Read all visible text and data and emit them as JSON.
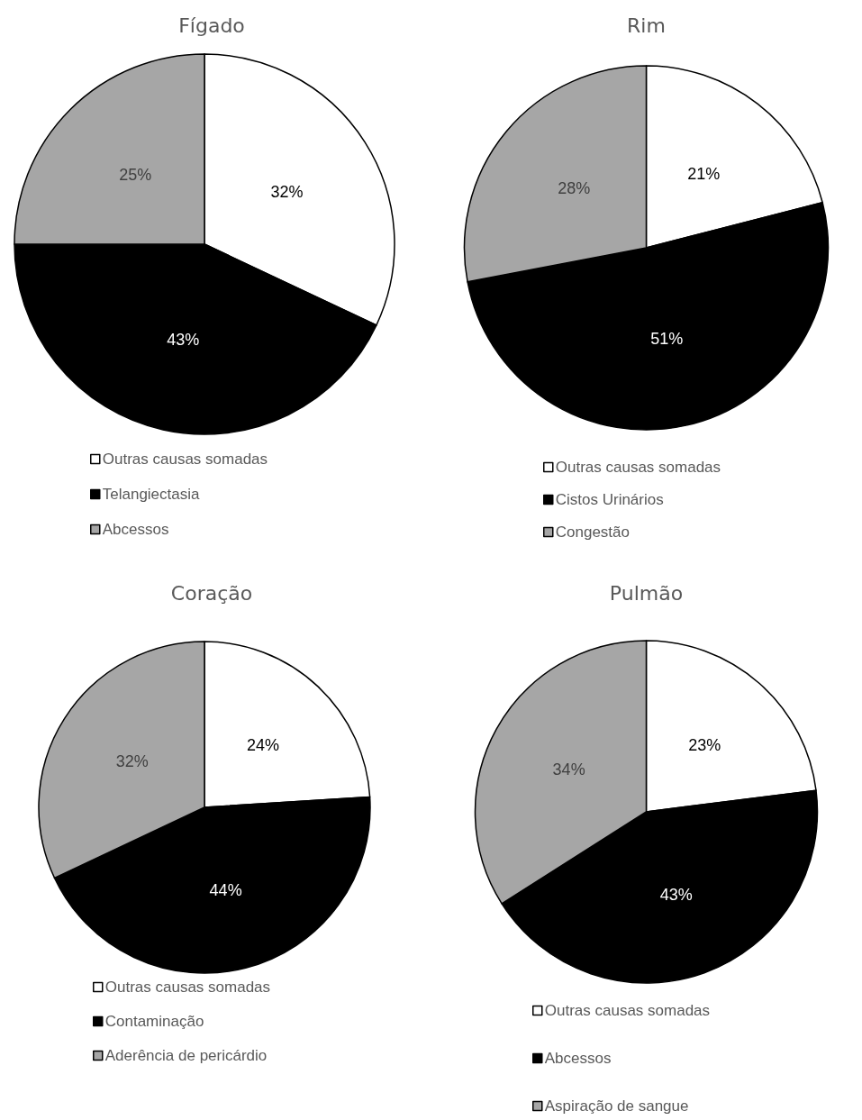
{
  "chart_data": [
    {
      "type": "pie",
      "title": "Fígado",
      "categories": [
        "Outras causas somadas",
        "Telangiectasia",
        "Abcessos"
      ],
      "values": [
        32,
        43,
        25
      ],
      "colors": [
        "#ffffff",
        "#000000",
        "#a6a6a6"
      ],
      "value_labels": [
        "32%",
        "43%",
        "25%"
      ],
      "legend": "bottom"
    },
    {
      "type": "pie",
      "title": "Rim",
      "categories": [
        "Outras causas somadas",
        "Cistos Urinários",
        "Congestão"
      ],
      "values": [
        21,
        51,
        28
      ],
      "colors": [
        "#ffffff",
        "#000000",
        "#a6a6a6"
      ],
      "value_labels": [
        "21%",
        "51%",
        "28%"
      ],
      "legend": "bottom"
    },
    {
      "type": "pie",
      "title": "Coração",
      "categories": [
        "Outras causas somadas",
        "Contaminação",
        "Aderência de pericárdio"
      ],
      "values": [
        24,
        44,
        32
      ],
      "colors": [
        "#ffffff",
        "#000000",
        "#a6a6a6"
      ],
      "value_labels": [
        "24%",
        "44%",
        "32%"
      ],
      "legend": "bottom"
    },
    {
      "type": "pie",
      "title": "Pulmão",
      "categories": [
        "Outras causas somadas",
        "Abcessos",
        "Aspiração de sangue"
      ],
      "values": [
        23,
        43,
        34
      ],
      "colors": [
        "#ffffff",
        "#000000",
        "#a6a6a6"
      ],
      "value_labels": [
        "23%",
        "43%",
        "34%"
      ],
      "legend": "bottom"
    }
  ]
}
